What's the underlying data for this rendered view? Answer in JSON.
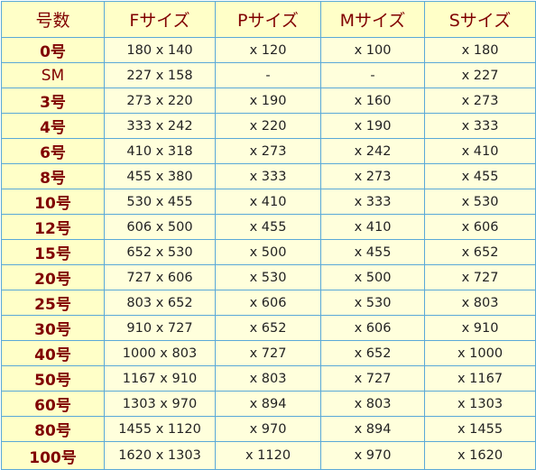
{
  "headers": [
    "号数",
    "Fサイズ",
    "Pサイズ",
    "Mサイズ",
    "Sサイズ"
  ],
  "rows": [
    {
      "size": "0号",
      "f": "180  x  140",
      "p": "x 120",
      "m": "x 100",
      "s": "x 180"
    },
    {
      "size": "SM",
      "f": "227  x  158",
      "p": "-",
      "m": "-",
      "s": "x 227"
    },
    {
      "size": "3号",
      "f": "273  x  220",
      "p": "x 190",
      "m": "x 160",
      "s": "x 273"
    },
    {
      "size": "4号",
      "f": "333  x  242",
      "p": "x 220",
      "m": "x 190",
      "s": "x 333"
    },
    {
      "size": "6号",
      "f": "410  x  318",
      "p": "x 273",
      "m": "x 242",
      "s": "x 410"
    },
    {
      "size": "8号",
      "f": "455  x  380",
      "p": "x 333",
      "m": "x 273",
      "s": "x 455"
    },
    {
      "size": "10号",
      "f": "530  x  455",
      "p": "x 410",
      "m": "x 333",
      "s": "x 530"
    },
    {
      "size": "12号",
      "f": "606  x  500",
      "p": "x 455",
      "m": "x 410",
      "s": "x 606"
    },
    {
      "size": "15号",
      "f": "652  x  530",
      "p": "x 500",
      "m": "x 455",
      "s": "x 652"
    },
    {
      "size": "20号",
      "f": "727  x  606",
      "p": "x 530",
      "m": "x 500",
      "s": "x 727"
    },
    {
      "size": "25号",
      "f": "803  x  652",
      "p": "x 606",
      "m": "x 530",
      "s": "x 803"
    },
    {
      "size": "30号",
      "f": "910  x  727",
      "p": "x 652",
      "m": "x 606",
      "s": "x 910"
    },
    {
      "size": "40号",
      "f": "1000  x  803",
      "p": "x 727",
      "m": "x 652",
      "s": "x 1000"
    },
    {
      "size": "50号",
      "f": "1167  x  910",
      "p": "x 803",
      "m": "x 727",
      "s": "x 1167"
    },
    {
      "size": "60号",
      "f": "1303  x  970",
      "p": "x 894",
      "m": "x 803",
      "s": "x 1303"
    },
    {
      "size": "80号",
      "f": "1455  x  1120",
      "p": "x 970",
      "m": "x 894",
      "s": "x 1455"
    },
    {
      "size": "100号",
      "f": "1620  x  1303",
      "p": "x 1120",
      "m": "x 970",
      "s": "x 1620"
    }
  ]
}
